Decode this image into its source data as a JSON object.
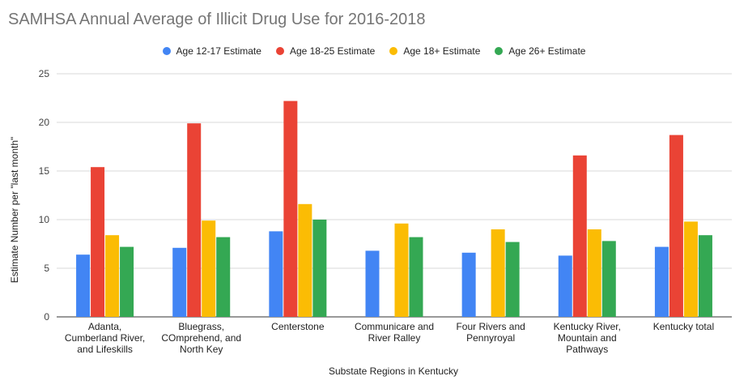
{
  "chart_data": {
    "type": "bar",
    "title": "SAMHSA Annual Average of Illicit Drug Use for 2016-2018",
    "xlabel": "Substate Regions in Kentucky",
    "ylabel": "Estimate Number per \"last month\"",
    "ylim": [
      0,
      25
    ],
    "yticks": [
      "0",
      "5",
      "10",
      "15",
      "20",
      "25"
    ],
    "grid": true,
    "legend_position": "top",
    "categories": [
      [
        "Adanta,",
        "Cumberland River,",
        "and Lifeskills"
      ],
      [
        "Bluegrass,",
        "COmprehend, and",
        "North Key"
      ],
      [
        "Centerstone"
      ],
      [
        "Communicare and",
        "River Ralley"
      ],
      [
        "Four Rivers and",
        "Pennyroyal"
      ],
      [
        "Kentucky River,",
        "Mountain and",
        "Pathways"
      ],
      [
        "Kentucky total"
      ]
    ],
    "series": [
      {
        "name": "Age 12-17 Estimate",
        "color": "#4285f4",
        "values": [
          6.4,
          7.1,
          8.8,
          6.8,
          6.6,
          6.3,
          7.2
        ]
      },
      {
        "name": "Age 18-25 Estimate",
        "color": "#ea4335",
        "values": [
          15.4,
          19.9,
          22.2,
          null,
          null,
          16.6,
          18.7
        ]
      },
      {
        "name": "Age 18+ Estimate",
        "color": "#fbbc04",
        "values": [
          8.4,
          9.9,
          11.6,
          9.6,
          9.0,
          9.0,
          9.8
        ]
      },
      {
        "name": "Age 26+ Estimate",
        "color": "#34a853",
        "values": [
          7.2,
          8.2,
          10.0,
          8.2,
          7.7,
          7.8,
          8.4
        ]
      }
    ]
  }
}
